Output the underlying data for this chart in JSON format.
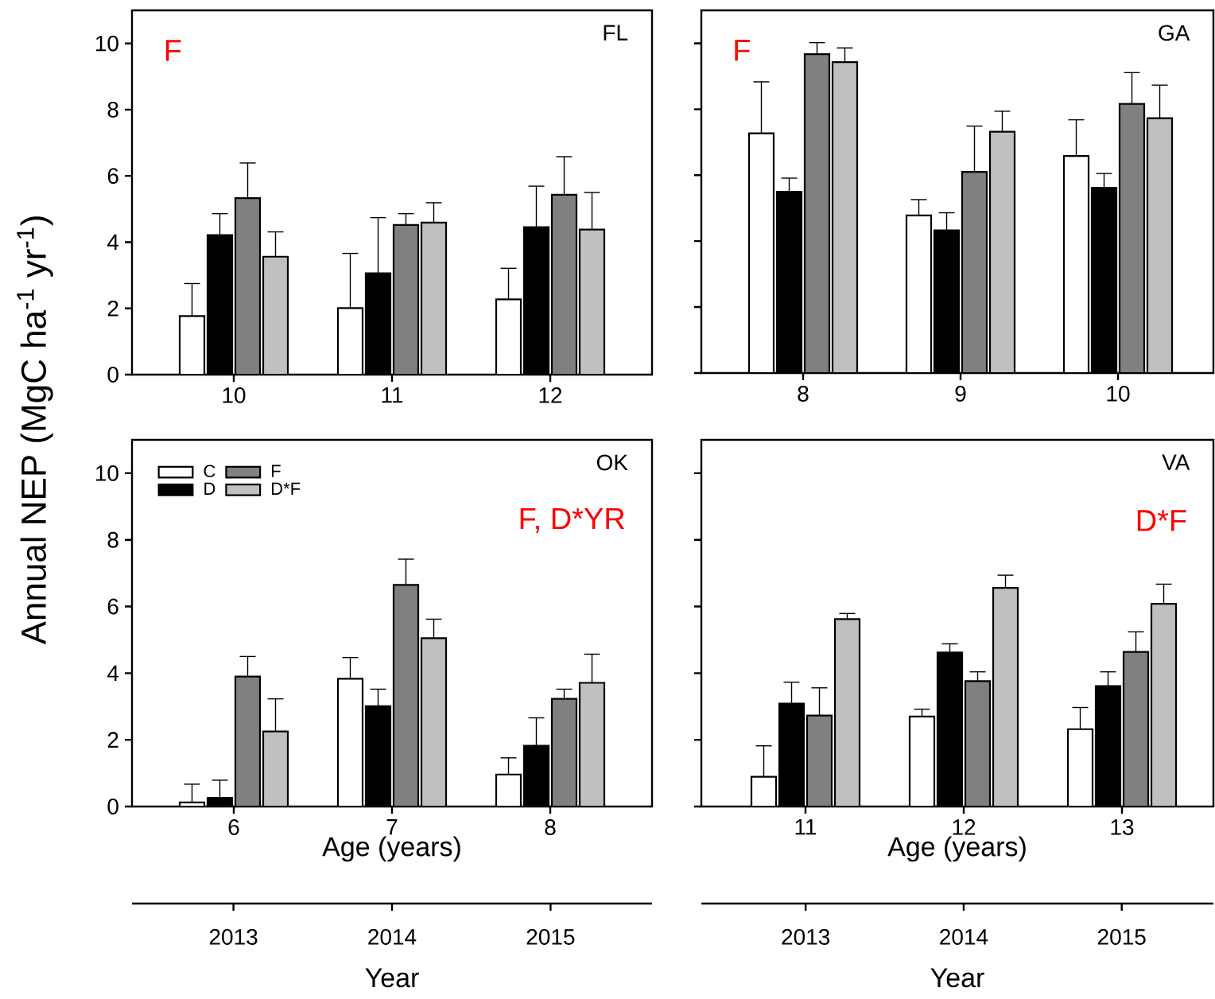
{
  "chart_data": [
    {
      "type": "bar",
      "title": "FL",
      "ylabel": "Annual NEP (MgC ha$^{-1}$ yr$^{-1}$)",
      "annotations": [
        "F"
      ],
      "categories": [
        "10",
        "11",
        "12"
      ],
      "ylim": [
        0,
        11
      ],
      "yticks": [
        0,
        2,
        4,
        6,
        8,
        10
      ],
      "series": [
        {
          "color": "#ffffff",
          "values": [
            1.77,
            2.01,
            2.27
          ],
          "errors": [
            [
              1.77,
              2.75
            ],
            [
              2.01,
              3.66
            ],
            [
              2.27,
              3.21
            ]
          ]
        },
        {
          "color": "#000000",
          "values": [
            4.21,
            3.06,
            4.45
          ],
          "errors": [
            [
              4.21,
              4.86
            ],
            [
              3.06,
              4.74
            ],
            [
              4.45,
              5.69
            ]
          ]
        },
        {
          "color": "#808080",
          "values": [
            5.33,
            4.52,
            5.43
          ],
          "errors": [
            [
              5.33,
              6.39
            ],
            [
              4.52,
              4.86
            ],
            [
              5.43,
              6.58
            ]
          ]
        },
        {
          "color": "#c0c0c0",
          "values": [
            3.56,
            4.59,
            4.38
          ],
          "errors": [
            [
              3.56,
              4.31
            ],
            [
              4.59,
              5.19
            ],
            [
              4.38,
              5.5
            ]
          ]
        }
      ]
    },
    {
      "type": "bar",
      "title": "GA",
      "annotations": [
        "F"
      ],
      "categories": [
        "8",
        "9",
        "10"
      ],
      "ylim": [
        0,
        11
      ],
      "yticks": [
        0,
        2,
        4,
        6,
        8,
        10
      ],
      "tick_labels": "x",
      "series": [
        {
          "color": "#ffffff",
          "values": [
            7.27,
            4.78,
            6.58
          ],
          "errors": [
            [
              7.27,
              8.83
            ],
            [
              4.78,
              5.26
            ],
            [
              6.58,
              7.68
            ]
          ]
        },
        {
          "color": "#000000",
          "values": [
            5.5,
            4.33,
            5.62
          ],
          "errors": [
            [
              5.5,
              5.91
            ],
            [
              4.33,
              4.86
            ],
            [
              5.62,
              6.05
            ]
          ]
        },
        {
          "color": "#808080",
          "values": [
            9.67,
            6.1,
            8.16
          ],
          "errors": [
            [
              9.67,
              10.02
            ],
            [
              6.1,
              7.49
            ],
            [
              8.16,
              9.11
            ]
          ]
        },
        {
          "color": "#c0c0c0",
          "values": [
            9.43,
            7.32,
            7.73
          ],
          "errors": [
            [
              9.43,
              9.86
            ],
            [
              7.32,
              7.94
            ],
            [
              7.73,
              8.73
            ]
          ]
        }
      ]
    },
    {
      "type": "bar",
      "title": "OK",
      "annotations": [
        "F, D*YR"
      ],
      "xlabel": "Age (years)",
      "categories": [
        "6",
        "7",
        "8"
      ],
      "ylim": [
        0,
        11
      ],
      "yticks": [
        0,
        2,
        4,
        6,
        8,
        10
      ],
      "legend": "top left",
      "x2lim": [
        2012.36,
        2015.64
      ],
      "x2ticks": [
        2013,
        2014,
        2015
      ],
      "x2label": "Year",
      "series": [
        {
          "name": "C",
          "color": "#ffffff",
          "values": [
            0.12,
            3.83,
            0.96
          ],
          "errors": [
            [
              0.12,
              0.67
            ],
            [
              3.83,
              4.47
            ],
            [
              0.96,
              1.46
            ]
          ]
        },
        {
          "name": "D",
          "color": "#000000",
          "values": [
            0.26,
            3.01,
            1.82
          ],
          "errors": [
            [
              0.26,
              0.79
            ],
            [
              3.01,
              3.52
            ],
            [
              1.82,
              2.66
            ]
          ]
        },
        {
          "name": "F",
          "color": "#808080",
          "values": [
            3.9,
            6.65,
            3.23
          ],
          "errors": [
            [
              3.9,
              4.5
            ],
            [
              6.65,
              7.42
            ],
            [
              3.23,
              3.52
            ]
          ]
        },
        {
          "name": "D*F",
          "color": "#c0c0c0",
          "values": [
            2.25,
            5.05,
            3.71
          ],
          "errors": [
            [
              2.25,
              3.23
            ],
            [
              5.05,
              5.62
            ],
            [
              3.71,
              4.57
            ]
          ]
        }
      ]
    },
    {
      "type": "bar",
      "title": "VA",
      "annotations": [
        "D*F"
      ],
      "xlabel": "Age (years)",
      "categories": [
        "11",
        "12",
        "13"
      ],
      "ylim": [
        0,
        11
      ],
      "yticks": [
        0,
        2,
        4,
        6,
        8,
        10
      ],
      "tick_labels": "x",
      "x2lim": [
        2012.34,
        2015.58
      ],
      "x2ticks": [
        2013,
        2014,
        2015
      ],
      "x2label": "Year",
      "series": [
        {
          "color": "#ffffff",
          "values": [
            0.89,
            2.7,
            2.32
          ],
          "errors": [
            [
              0.89,
              1.82
            ],
            [
              2.7,
              2.92
            ],
            [
              2.32,
              2.97
            ]
          ]
        },
        {
          "color": "#000000",
          "values": [
            3.09,
            4.62,
            3.61
          ],
          "errors": [
            [
              3.09,
              3.73
            ],
            [
              4.62,
              4.88
            ],
            [
              3.61,
              4.04
            ]
          ]
        },
        {
          "color": "#808080",
          "values": [
            2.73,
            3.76,
            4.64
          ],
          "errors": [
            [
              2.73,
              3.56
            ],
            [
              3.76,
              4.04
            ],
            [
              4.64,
              5.24
            ]
          ]
        },
        {
          "color": "#c0c0c0",
          "values": [
            5.62,
            6.56,
            6.08
          ],
          "errors": [
            [
              5.62,
              5.79
            ],
            [
              6.56,
              6.94
            ],
            [
              6.08,
              6.67
            ]
          ]
        }
      ]
    }
  ]
}
